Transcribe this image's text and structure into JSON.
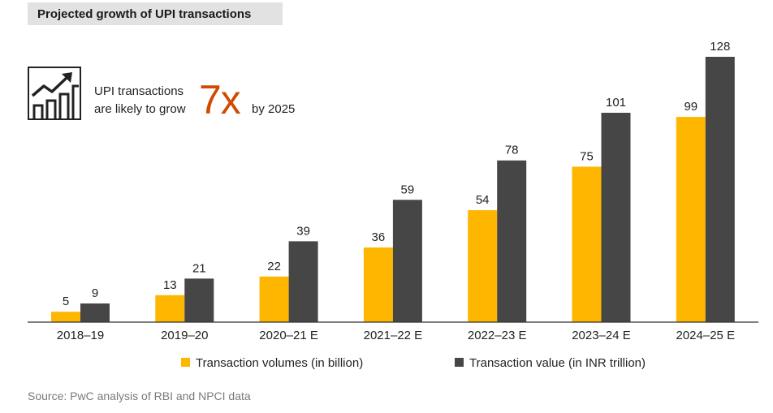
{
  "title": "Projected growth of UPI transactions",
  "callout": {
    "icon": "growth-chart-icon",
    "line1": "UPI transactions",
    "line2": "are likely to grow",
    "highlight": "7x",
    "tail": "by 2025"
  },
  "source": "Source: PwC analysis of RBI and NPCI data",
  "colors": {
    "volume": "#FFB600",
    "value": "#464646",
    "highlight": "#D04A02",
    "axis": "#333333"
  },
  "chart_data": {
    "type": "bar",
    "title": "Projected growth of UPI transactions",
    "categories": [
      "2018–19",
      "2019–20",
      "2020–21 E",
      "2021–22 E",
      "2022–23 E",
      "2023–24 E",
      "2024–25 E"
    ],
    "series": [
      {
        "name": "Transaction volumes (in billion)",
        "values": [
          5,
          13,
          22,
          36,
          54,
          75,
          99
        ]
      },
      {
        "name": "Transaction value (in INR trillion)",
        "values": [
          9,
          21,
          39,
          59,
          78,
          101,
          128
        ]
      }
    ],
    "xlabel": "",
    "ylabel": "",
    "ylim": [
      0,
      128
    ],
    "grid": false,
    "legend": "bottom-center"
  }
}
